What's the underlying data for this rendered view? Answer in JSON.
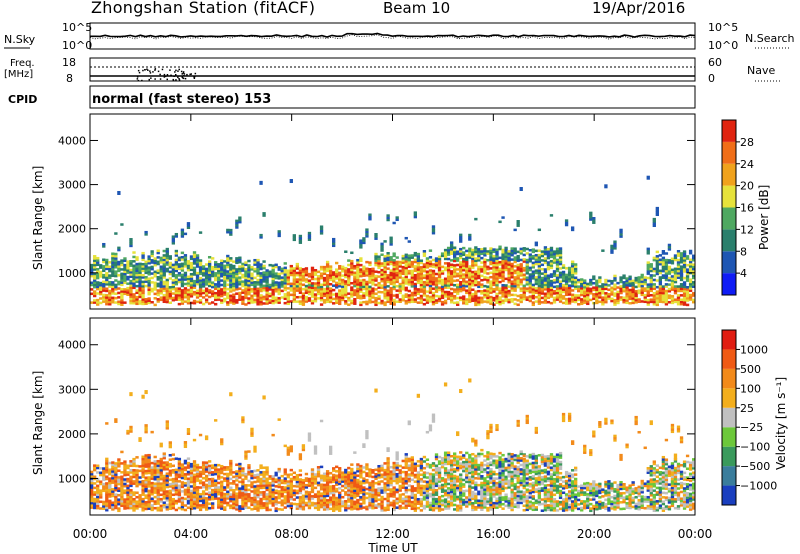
{
  "header": {
    "station": "Zhongshan Station (fitACF)",
    "beam": "Beam 10",
    "date": "19/Apr/2016"
  },
  "top_panel": {
    "left_label": "N.Sky",
    "right_label": "N.Search",
    "y_top": "10^5",
    "y_bottom": "10^0",
    "y_top_right": "10^5",
    "y_bottom_right": "10^0"
  },
  "freq_panel": {
    "left_label_1": "Freq.",
    "left_label_2": "[MHz]",
    "left_top": "18",
    "left_bottom": "8",
    "right_label": "Nave",
    "right_top": "60",
    "right_bottom": "0"
  },
  "cpid": {
    "label": "CPID",
    "text": "normal (fast stereo) 153"
  },
  "chart_data": [
    {
      "type": "heatmap",
      "ylabel": "Slant Range [km]",
      "yticks": [
        "1000",
        "2000",
        "3000",
        "4000"
      ],
      "xticks": [
        "00:00",
        "04:00",
        "08:00",
        "12:00",
        "16:00",
        "20:00",
        "00:00"
      ],
      "ylim": [
        180,
        4600
      ],
      "colorbar": {
        "label": "Power [dB]",
        "ticks": [
          "4",
          "8",
          "12",
          "16",
          "20",
          "24",
          "28"
        ],
        "colors": [
          "#0f1cf5",
          "#1e56b3",
          "#2a7f6c",
          "#4fa861",
          "#e6e23b",
          "#f0a21c",
          "#f06e18",
          "#e02410"
        ]
      }
    },
    {
      "type": "heatmap",
      "ylabel": "Slant Range [km]",
      "yticks": [
        "1000",
        "2000",
        "3000",
        "4000"
      ],
      "xticks": [
        "00:00",
        "04:00",
        "08:00",
        "12:00",
        "16:00",
        "20:00",
        "00:00"
      ],
      "xlabel": "Time UT",
      "ylim": [
        180,
        4600
      ],
      "colorbar": {
        "label": "Velocity [m s⁻¹]",
        "ticks": [
          "1000",
          "500",
          "100",
          "25",
          "−25",
          "−100",
          "−500",
          "−1000"
        ],
        "colors": [
          "#1a3fbf",
          "#3a7d9c",
          "#3a9a5c",
          "#6cc83a",
          "#c0c0c0",
          "#f3ae1c",
          "#f28a1a",
          "#f05a14",
          "#e01d12"
        ]
      }
    }
  ]
}
